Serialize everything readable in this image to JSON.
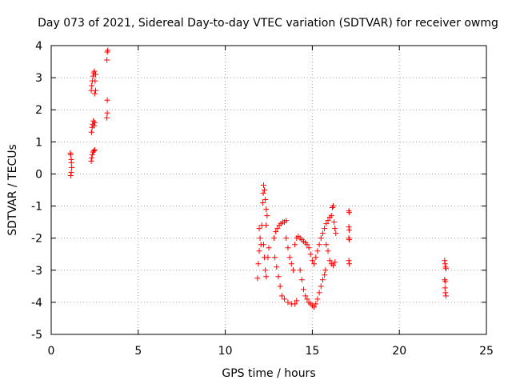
{
  "chart_data": {
    "type": "scatter",
    "title": "Day 073 of 2021, Sidereal Day-to-day VTEC variation (SDTVAR) for receiver owmg",
    "xlabel": "GPS time / hours",
    "ylabel": "SDTVAR / TECUs",
    "xlim": [
      0,
      25
    ],
    "ylim": [
      -5,
      4
    ],
    "xticks": [
      0,
      5,
      10,
      15,
      20,
      25
    ],
    "xtick_labels": [
      "0",
      "5",
      "10",
      "15",
      "20",
      "25"
    ],
    "yticks": [
      -5,
      -4,
      -3,
      -2,
      -1,
      0,
      1,
      2,
      3,
      4
    ],
    "ytick_labels": [
      "-5",
      "-4",
      "-3",
      "-2",
      "-1",
      "0",
      "1",
      "2",
      "3",
      "4"
    ],
    "grid": true,
    "marker": "plus",
    "color": "#ff0000",
    "series": [
      {
        "name": "SDTVAR",
        "points": [
          [
            1.1,
            0.65
          ],
          [
            1.12,
            0.6
          ],
          [
            1.15,
            0.45
          ],
          [
            1.16,
            0.35
          ],
          [
            1.18,
            0.2
          ],
          [
            1.15,
            0.05
          ],
          [
            1.12,
            -0.05
          ],
          [
            2.3,
            0.4
          ],
          [
            2.33,
            0.5
          ],
          [
            2.36,
            0.6
          ],
          [
            2.4,
            0.68
          ],
          [
            2.45,
            0.72
          ],
          [
            2.5,
            0.75
          ],
          [
            2.32,
            1.3
          ],
          [
            2.35,
            1.45
          ],
          [
            2.38,
            1.55
          ],
          [
            2.42,
            1.65
          ],
          [
            2.46,
            1.5
          ],
          [
            2.5,
            1.6
          ],
          [
            2.3,
            2.6
          ],
          [
            2.33,
            2.75
          ],
          [
            2.36,
            2.9
          ],
          [
            2.4,
            3.05
          ],
          [
            2.44,
            3.15
          ],
          [
            2.48,
            3.2
          ],
          [
            2.5,
            2.5
          ],
          [
            2.55,
            2.6
          ],
          [
            2.52,
            2.9
          ],
          [
            2.55,
            3.1
          ],
          [
            3.2,
            1.75
          ],
          [
            3.22,
            1.9
          ],
          [
            3.22,
            2.3
          ],
          [
            3.2,
            3.55
          ],
          [
            3.22,
            3.8
          ],
          [
            3.25,
            3.85
          ],
          [
            11.85,
            -3.25
          ],
          [
            11.9,
            -2.8
          ],
          [
            11.95,
            -2.4
          ],
          [
            12.0,
            -2.0
          ],
          [
            11.95,
            -1.7
          ],
          [
            12.05,
            -2.2
          ],
          [
            12.1,
            -1.6
          ],
          [
            12.15,
            -0.9
          ],
          [
            12.18,
            -0.6
          ],
          [
            12.2,
            -0.35
          ],
          [
            12.25,
            -0.5
          ],
          [
            12.3,
            -0.8
          ],
          [
            12.35,
            -1.1
          ],
          [
            12.4,
            -1.3
          ],
          [
            12.35,
            -1.6
          ],
          [
            12.2,
            -2.2
          ],
          [
            12.25,
            -2.6
          ],
          [
            12.3,
            -3.0
          ],
          [
            12.35,
            -3.2
          ],
          [
            12.45,
            -2.6
          ],
          [
            12.5,
            -2.3
          ],
          [
            12.8,
            -2.0
          ],
          [
            12.9,
            -1.8
          ],
          [
            13.0,
            -1.7
          ],
          [
            13.1,
            -1.6
          ],
          [
            13.2,
            -1.55
          ],
          [
            13.3,
            -1.5
          ],
          [
            13.4,
            -1.5
          ],
          [
            13.5,
            -1.45
          ],
          [
            12.85,
            -2.6
          ],
          [
            12.95,
            -2.9
          ],
          [
            13.05,
            -3.2
          ],
          [
            13.15,
            -3.5
          ],
          [
            13.25,
            -3.8
          ],
          [
            13.4,
            -3.9
          ],
          [
            13.6,
            -4.0
          ],
          [
            13.8,
            -4.05
          ],
          [
            14.0,
            -4.05
          ],
          [
            14.1,
            -3.95
          ],
          [
            13.5,
            -2.0
          ],
          [
            13.6,
            -2.3
          ],
          [
            13.7,
            -2.6
          ],
          [
            13.8,
            -2.8
          ],
          [
            13.9,
            -3.0
          ],
          [
            14.0,
            -2.2
          ],
          [
            14.1,
            -2.0
          ],
          [
            14.2,
            -1.95
          ],
          [
            14.3,
            -2.0
          ],
          [
            14.4,
            -2.05
          ],
          [
            14.5,
            -2.1
          ],
          [
            14.6,
            -2.15
          ],
          [
            14.7,
            -2.2
          ],
          [
            14.3,
            -3.0
          ],
          [
            14.4,
            -3.3
          ],
          [
            14.5,
            -3.6
          ],
          [
            14.6,
            -3.8
          ],
          [
            14.7,
            -3.9
          ],
          [
            14.8,
            -4.0
          ],
          [
            14.9,
            -4.05
          ],
          [
            15.0,
            -4.1
          ],
          [
            15.1,
            -4.15
          ],
          [
            15.2,
            -4.05
          ],
          [
            15.3,
            -3.9
          ],
          [
            15.4,
            -3.7
          ],
          [
            15.5,
            -3.5
          ],
          [
            15.6,
            -3.3
          ],
          [
            15.7,
            -3.15
          ],
          [
            15.75,
            -3.0
          ],
          [
            14.8,
            -2.3
          ],
          [
            14.9,
            -2.5
          ],
          [
            15.0,
            -2.7
          ],
          [
            15.1,
            -2.8
          ],
          [
            15.2,
            -2.6
          ],
          [
            15.3,
            -2.4
          ],
          [
            15.4,
            -2.2
          ],
          [
            15.5,
            -2.0
          ],
          [
            15.6,
            -1.85
          ],
          [
            15.7,
            -1.7
          ],
          [
            15.8,
            -1.55
          ],
          [
            15.9,
            -1.45
          ],
          [
            16.0,
            -1.35
          ],
          [
            16.1,
            -1.3
          ],
          [
            16.15,
            -1.05
          ],
          [
            16.2,
            -1.0
          ],
          [
            15.8,
            -2.2
          ],
          [
            15.9,
            -2.4
          ],
          [
            16.0,
            -2.7
          ],
          [
            16.1,
            -2.8
          ],
          [
            16.2,
            -2.85
          ],
          [
            16.3,
            -2.75
          ],
          [
            16.25,
            -1.5
          ],
          [
            16.3,
            -1.7
          ],
          [
            16.35,
            -1.85
          ],
          [
            17.1,
            -1.15
          ],
          [
            17.12,
            -1.2
          ],
          [
            17.1,
            -1.65
          ],
          [
            17.12,
            -1.75
          ],
          [
            17.1,
            -2.0
          ],
          [
            17.12,
            -2.05
          ],
          [
            17.1,
            -2.7
          ],
          [
            17.12,
            -2.8
          ],
          [
            22.6,
            -2.7
          ],
          [
            22.62,
            -2.8
          ],
          [
            22.65,
            -2.9
          ],
          [
            22.68,
            -2.95
          ],
          [
            22.6,
            -3.3
          ],
          [
            22.65,
            -3.35
          ],
          [
            22.62,
            -3.55
          ],
          [
            22.65,
            -3.7
          ],
          [
            22.68,
            -3.8
          ]
        ]
      }
    ]
  }
}
